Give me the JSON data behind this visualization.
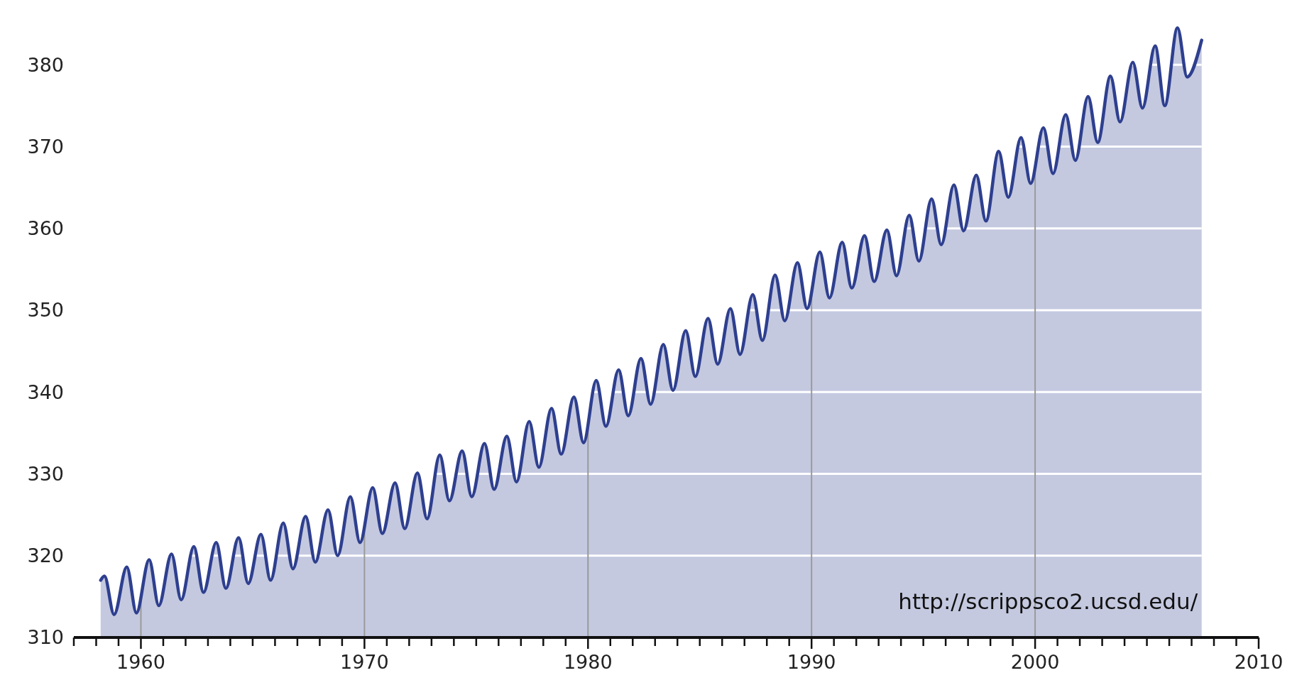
{
  "chart_data": {
    "type": "area",
    "x": [
      1958.2,
      1958.37,
      1958.8,
      1959.37,
      1959.8,
      1960.37,
      1960.8,
      1961.37,
      1961.8,
      1962.37,
      1962.8,
      1963.37,
      1963.8,
      1964.37,
      1964.8,
      1965.37,
      1965.8,
      1966.37,
      1966.8,
      1967.37,
      1967.8,
      1968.37,
      1968.8,
      1969.37,
      1969.8,
      1970.37,
      1970.8,
      1971.37,
      1971.8,
      1972.37,
      1972.8,
      1973.37,
      1973.8,
      1974.37,
      1974.8,
      1975.37,
      1975.8,
      1976.37,
      1976.8,
      1977.37,
      1977.8,
      1978.37,
      1978.8,
      1979.37,
      1979.8,
      1980.37,
      1980.8,
      1981.37,
      1981.8,
      1982.37,
      1982.8,
      1983.37,
      1983.8,
      1984.37,
      1984.8,
      1985.37,
      1985.8,
      1986.37,
      1986.8,
      1987.37,
      1987.8,
      1988.37,
      1988.8,
      1989.37,
      1989.8,
      1990.37,
      1990.8,
      1991.37,
      1991.8,
      1992.37,
      1992.8,
      1993.37,
      1993.8,
      1994.37,
      1994.8,
      1995.37,
      1995.8,
      1996.37,
      1996.8,
      1997.37,
      1997.8,
      1998.37,
      1998.8,
      1999.37,
      1999.8,
      2000.37,
      2000.8,
      2001.37,
      2001.8,
      2002.37,
      2002.8,
      2003.37,
      2003.8,
      2004.37,
      2004.8,
      2005.37,
      2005.8,
      2006.37,
      2006.8,
      2007.45
    ],
    "series": [
      {
        "color": "#2e3f8f",
        "values": [
          317.0,
          317.5,
          312.8,
          318.6,
          313.0,
          319.5,
          313.9,
          320.2,
          314.6,
          321.1,
          315.5,
          321.6,
          316.0,
          322.2,
          316.6,
          322.6,
          317.0,
          324.0,
          318.4,
          324.8,
          319.2,
          325.6,
          320.0,
          327.2,
          321.6,
          328.3,
          322.7,
          328.9,
          323.3,
          330.1,
          324.5,
          332.3,
          326.7,
          332.8,
          327.2,
          333.7,
          328.1,
          334.6,
          329.0,
          336.4,
          330.8,
          338.0,
          332.4,
          339.4,
          333.8,
          341.4,
          335.8,
          342.7,
          337.1,
          344.1,
          338.5,
          345.8,
          340.2,
          347.5,
          341.9,
          349.0,
          343.4,
          350.2,
          344.6,
          351.9,
          346.3,
          354.3,
          348.7,
          355.8,
          350.2,
          357.1,
          351.5,
          358.3,
          352.7,
          359.1,
          353.5,
          359.8,
          354.2,
          361.6,
          356.0,
          363.6,
          358.0,
          365.3,
          359.7,
          366.5,
          360.9,
          369.4,
          363.8,
          371.1,
          365.5,
          372.3,
          366.7,
          373.9,
          368.3,
          376.1,
          370.5,
          378.6,
          373.0,
          380.3,
          374.7,
          382.3,
          375.0,
          384.5,
          378.5,
          383.0
        ]
      }
    ],
    "xlim": [
      1957,
      2010
    ],
    "xticks": [
      {
        "value": 1957,
        "label": null
      },
      {
        "value": 1958,
        "label": null
      },
      {
        "value": 1959,
        "label": null
      },
      1960,
      {
        "value": 1961,
        "label": null
      },
      {
        "value": 1962,
        "label": null
      },
      {
        "value": 1963,
        "label": null
      },
      {
        "value": 1964,
        "label": null
      },
      {
        "value": 1965,
        "label": null
      },
      {
        "value": 1966,
        "label": null
      },
      {
        "value": 1967,
        "label": null
      },
      {
        "value": 1968,
        "label": null
      },
      {
        "value": 1969,
        "label": null
      },
      1970,
      {
        "value": 1971,
        "label": null
      },
      {
        "value": 1972,
        "label": null
      },
      {
        "value": 1973,
        "label": null
      },
      {
        "value": 1974,
        "label": null
      },
      {
        "value": 1975,
        "label": null
      },
      {
        "value": 1976,
        "label": null
      },
      {
        "value": 1977,
        "label": null
      },
      {
        "value": 1978,
        "label": null
      },
      {
        "value": 1979,
        "label": null
      },
      1980,
      {
        "value": 1981,
        "label": null
      },
      {
        "value": 1982,
        "label": null
      },
      {
        "value": 1983,
        "label": null
      },
      {
        "value": 1984,
        "label": null
      },
      {
        "value": 1985,
        "label": null
      },
      {
        "value": 1986,
        "label": null
      },
      {
        "value": 1987,
        "label": null
      },
      {
        "value": 1988,
        "label": null
      },
      {
        "value": 1989,
        "label": null
      },
      1990,
      {
        "value": 1991,
        "label": null
      },
      {
        "value": 1992,
        "label": null
      },
      {
        "value": 1993,
        "label": null
      },
      {
        "value": 1994,
        "label": null
      },
      {
        "value": 1995,
        "label": null
      },
      {
        "value": 1996,
        "label": null
      },
      {
        "value": 1997,
        "label": null
      },
      {
        "value": 1998,
        "label": null
      },
      {
        "value": 1999,
        "label": null
      },
      2000,
      {
        "value": 2001,
        "label": null
      },
      {
        "value": 2002,
        "label": null
      },
      {
        "value": 2003,
        "label": null
      },
      {
        "value": 2004,
        "label": null
      },
      {
        "value": 2005,
        "label": null
      },
      {
        "value": 2006,
        "label": null
      },
      {
        "value": 2007,
        "label": null
      },
      {
        "value": 2008,
        "label": null
      },
      {
        "value": 2009,
        "label": null
      },
      2010
    ],
    "ylim": [
      310,
      386
    ],
    "yticks": [
      310,
      320,
      330,
      340,
      350,
      360,
      370,
      380
    ],
    "grid": true,
    "annotations": [
      "http://scrippsco2.ucsd.edu/"
    ]
  }
}
